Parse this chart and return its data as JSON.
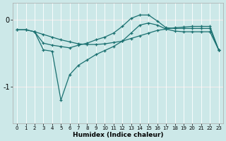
{
  "xlabel": "Humidex (Indice chaleur)",
  "background_color": "#cce8e8",
  "grid_color": "#ffffff",
  "line_color": "#1a7070",
  "xlim": [
    -0.5,
    23.5
  ],
  "ylim": [
    -1.55,
    0.25
  ],
  "yticks": [
    0,
    -1
  ],
  "xticks": [
    0,
    1,
    2,
    3,
    4,
    5,
    6,
    7,
    8,
    9,
    10,
    11,
    12,
    13,
    14,
    15,
    16,
    17,
    18,
    19,
    20,
    21,
    22,
    23
  ],
  "line1_x": [
    0,
    1,
    2,
    3,
    4,
    5,
    6,
    7,
    8,
    9,
    10,
    11,
    12,
    13,
    14,
    15,
    16,
    17,
    18,
    19,
    20,
    21,
    22,
    23
  ],
  "line1_y": [
    -0.15,
    -0.15,
    -0.18,
    -0.22,
    -0.26,
    -0.3,
    -0.33,
    -0.36,
    -0.37,
    -0.37,
    -0.36,
    -0.34,
    -0.32,
    -0.28,
    -0.24,
    -0.2,
    -0.16,
    -0.14,
    -0.12,
    -0.11,
    -0.1,
    -0.1,
    -0.1,
    -0.45
  ],
  "line2_x": [
    0,
    1,
    2,
    3,
    4,
    5,
    6,
    7,
    8,
    9,
    10,
    11,
    12,
    13,
    14,
    15,
    16,
    17,
    18,
    19,
    20,
    21,
    22,
    23
  ],
  "line2_y": [
    -0.15,
    -0.15,
    -0.18,
    -0.35,
    -0.38,
    -0.4,
    -0.42,
    -0.38,
    -0.35,
    -0.3,
    -0.26,
    -0.2,
    -0.1,
    0.02,
    0.07,
    0.07,
    -0.02,
    -0.12,
    -0.13,
    -0.13,
    -0.13,
    -0.13,
    -0.13,
    -0.45
  ],
  "line3_x": [
    2,
    3,
    4,
    5,
    6,
    7,
    8,
    9,
    10,
    11,
    12,
    13,
    14,
    15,
    16,
    17,
    18,
    19,
    20,
    21,
    22,
    23
  ],
  "line3_y": [
    -0.18,
    -0.45,
    -0.47,
    -1.2,
    -0.82,
    -0.68,
    -0.6,
    -0.52,
    -0.46,
    -0.4,
    -0.32,
    -0.2,
    -0.08,
    -0.05,
    -0.08,
    -0.14,
    -0.17,
    -0.18,
    -0.18,
    -0.18,
    -0.18,
    -0.45
  ]
}
